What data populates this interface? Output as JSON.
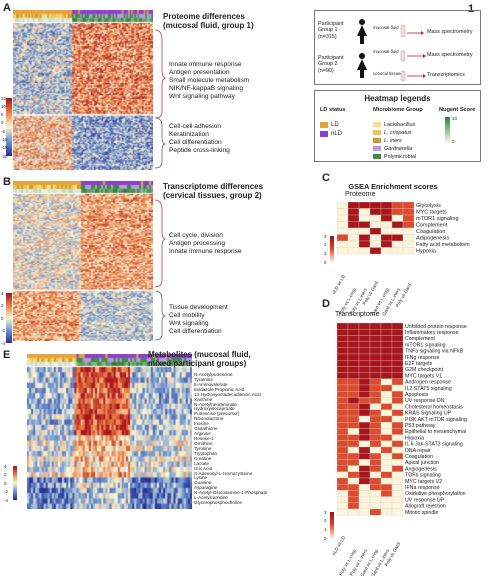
{
  "panels": {
    "A": {
      "letter": "A",
      "title_line1": "Proteome differences",
      "title_line2": "(mucosal fluid, group 1)",
      "up_terms": [
        "Innate immune response",
        "Antigen presentation",
        "Small molecule metabolism",
        "NIK/NF-kappaB signaling",
        "Wnt signaling pathway"
      ],
      "down_terms": [
        "Cell-cell adhesion",
        "Keratinization",
        "Cell differentiation",
        "Peptide cross-linking"
      ],
      "scale_ticks": [
        "15",
        "10",
        "5",
        "0",
        "-5",
        "-10",
        "-15",
        "-20"
      ]
    },
    "B": {
      "letter": "B",
      "title_line1": "Transcriptome differences",
      "title_line2": "(cervical tissues, group 2)",
      "up_terms": [
        "Cell cycle, division",
        "Antigen processing",
        "Innate immune response"
      ],
      "down_terms": [
        "Tissue development",
        "Cell mobility",
        "Wnt signaling",
        "Cell differentiation"
      ],
      "scale_ticks": [
        "4",
        "2",
        "0",
        "-2",
        "-4"
      ]
    },
    "E": {
      "letter": "E",
      "title_line1": "Metabolites (mucosal fluid,",
      "title_line2": "mixed participant groups)",
      "metabolites": [
        "N-Acetylputrescine",
        "Tyramine",
        "5-Aminovalerate",
        "Imidazole Propionic Acid",
        "13-Hydroxyoctadecadienoic Acid",
        "Xanthine",
        "N-Acetylneuraminate",
        "Hydroxyisocaproate",
        "Putrescine (precursor)",
        "Ribonolactone",
        "Inosine",
        "Glutathione",
        "Arginine",
        "Hexose-1",
        "Ornithine",
        "Tyrosine",
        "Tryptophan",
        "Creatine",
        "Lactate",
        "Uric Acid",
        "S-Adenosyl-L-Homocysteine",
        "Lysine",
        "Guanine",
        "Asparagine",
        "N-Acetyl-Glucosamine-1-Phosphate",
        "L-Acetylcarnitine",
        "Glycerophosphocholine"
      ],
      "scale_ticks": [
        "4",
        "2",
        "0",
        "-2",
        "-4"
      ]
    }
  },
  "legend_1": {
    "letter": "1",
    "participants": [
      {
        "line1": "Participant",
        "line2": "Group 1",
        "line3": "(n=315)",
        "sample": "mucosal fluid",
        "arrow_label": "Mass spectrometry"
      },
      {
        "line1": "Participant",
        "line2": "Group 2",
        "line3": "(n=90)",
        "sample_a": "mucosal fluid",
        "sample_b": "cervical tissues",
        "arrow_label_a": "Mass spectrometry",
        "arrow_label_b": "Transcriptomics"
      }
    ]
  },
  "heatmap_legends": {
    "title": "Heatmap legends",
    "ld_status_title": "LD status",
    "ld_items": [
      {
        "label": "LD",
        "color": "#e8a43a"
      },
      {
        "label": "nLD",
        "color": "#8e3fd1"
      }
    ],
    "microbiome_title": "Microbiome Group",
    "microbiome_items": [
      {
        "label": "Lactobacillus",
        "color": "#f4e08a"
      },
      {
        "label": "L. crispatus",
        "color": "#efc552"
      },
      {
        "label": "L. iners",
        "color": "#d09a2b"
      },
      {
        "label": "Gardnerella",
        "color": "#b89ae0"
      },
      {
        "label": "Polymicrobial",
        "color": "#3c8f3a"
      }
    ],
    "nugent_title": "Nugent Score",
    "nugent_high": "10",
    "nugent_low": "0"
  },
  "panel_C": {
    "letter": "C",
    "title": "GSEA Enrichment scores",
    "subtitle": "Proteome",
    "rows": [
      "Glycolysis",
      "MYC targets",
      "mTOR1 signaling",
      "Complement",
      "Coagulation",
      "Adipogenesis",
      "Fatty acid metabolism",
      "Hypoxia"
    ],
    "cols": [
      "nLD vs LD",
      "Poly vs L.crisp",
      "Poly vs L.iners",
      "Poly vs Gard",
      "Gard vs L.crisp",
      "Gard vs L.iners",
      "Poly vs Gard "
    ],
    "scale_ticks": [
      "3",
      "2",
      "1",
      "0"
    ],
    "matrix": [
      [
        0,
        3,
        3,
        3,
        3,
        2,
        2
      ],
      [
        0,
        3,
        0,
        3,
        3,
        2,
        2
      ],
      [
        0,
        3,
        0,
        0,
        3,
        0,
        2
      ],
      [
        0,
        3,
        3,
        0,
        0,
        3,
        2
      ],
      [
        0,
        0,
        0,
        3,
        0,
        0,
        0
      ],
      [
        2,
        0,
        3,
        0,
        3,
        3,
        0
      ],
      [
        0,
        0,
        3,
        0,
        3,
        0,
        0
      ],
      [
        0,
        0,
        0,
        3,
        0,
        0,
        0
      ]
    ]
  },
  "panel_D": {
    "letter": "D",
    "subtitle": "Transcriptome",
    "rows": [
      "Unfolded protein response",
      "Inflammatory response",
      "Complement",
      "mTOR1 signaling",
      "TNFa signaling via NFkB",
      "IFNg response",
      "E2F targets",
      "G2M checkpoint",
      "MYC targets V1",
      "Androgen response",
      "IL2 STAT5 signaling",
      "Apoptosis",
      "UV response DN",
      "Cholesterol homeostasis",
      "KRAS Signaling UP",
      "PI3K AKT mTOR signaling",
      "P53 pathway",
      "Epithelial to mesenchymal",
      "Hypoxia",
      "IL 6 Jak-STAT3 signaling",
      "DNA repair",
      "Coagulation",
      "Apical junction",
      "Angiogenesis",
      "TGFb signaling",
      "MYC targets V2",
      "IFNa response",
      "Oxidative phosphorylation",
      "UV response UP",
      "Allograft rejection",
      "Mitotic spindle"
    ],
    "cols": [
      "nLD vs LD",
      "Poly vs L.crisp",
      "Poly vs L.iners",
      "Gard vs L.crisp",
      "Gard vs L.iners",
      "Poly vs Gard"
    ],
    "scale_ticks": [
      "3",
      "2",
      "1",
      "0"
    ],
    "matrix": [
      [
        3,
        3,
        3,
        3,
        3,
        3
      ],
      [
        3,
        3,
        3,
        3,
        3,
        3
      ],
      [
        3,
        3,
        3,
        3,
        3,
        3
      ],
      [
        3,
        3,
        3,
        3,
        3,
        3
      ],
      [
        3,
        3,
        3,
        3,
        3,
        3
      ],
      [
        3,
        3,
        3,
        3,
        3,
        3
      ],
      [
        3,
        3,
        3,
        3,
        3,
        3
      ],
      [
        3,
        3,
        3,
        3,
        3,
        3
      ],
      [
        3,
        3,
        3,
        3,
        3,
        3
      ],
      [
        2,
        2,
        3,
        2,
        0,
        2
      ],
      [
        2,
        2,
        3,
        2,
        2,
        0
      ],
      [
        2,
        2,
        3,
        2,
        0,
        2
      ],
      [
        2,
        3,
        2,
        2,
        0,
        2
      ],
      [
        2,
        2,
        3,
        0,
        2,
        0
      ],
      [
        2,
        2,
        3,
        2,
        0,
        2
      ],
      [
        2,
        2,
        0,
        2,
        2,
        0
      ],
      [
        2,
        2,
        3,
        2,
        0,
        2
      ],
      [
        2,
        0,
        3,
        2,
        0,
        2
      ],
      [
        2,
        2,
        3,
        2,
        2,
        0
      ],
      [
        2,
        2,
        0,
        2,
        0,
        2
      ],
      [
        2,
        0,
        3,
        0,
        2,
        0
      ],
      [
        2,
        2,
        3,
        2,
        0,
        2
      ],
      [
        2,
        2,
        0,
        2,
        0,
        0
      ],
      [
        2,
        0,
        3,
        2,
        0,
        2
      ],
      [
        0,
        2,
        3,
        0,
        2,
        0
      ],
      [
        2,
        0,
        3,
        2,
        0,
        0
      ],
      [
        2,
        2,
        0,
        2,
        2,
        0
      ],
      [
        0,
        2,
        0,
        0,
        2,
        0
      ],
      [
        0,
        2,
        0,
        0,
        0,
        0
      ],
      [
        0,
        2,
        0,
        0,
        0,
        0
      ],
      [
        0,
        0,
        0,
        2,
        0,
        0
      ]
    ]
  }
}
